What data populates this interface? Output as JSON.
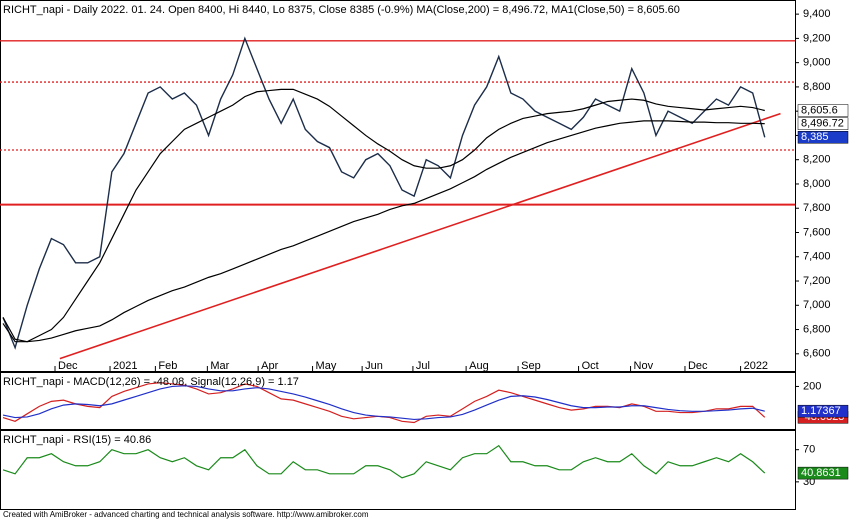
{
  "chart_data": [
    {
      "type": "line",
      "title": "RICHT_napi - Daily 2022. 01. 24. Open 8400, Hi 8440, Lo 8375, Close 8385 (-0.9%) MA(Close,200) = 8,496.72, MA1(Close,50) = 8,605.60",
      "xlim": [
        -0.25,
        65.5
      ],
      "ylim": [
        6450,
        9500
      ],
      "xticks": [
        {
          "value": 4.3,
          "label": "Dec"
        },
        {
          "value": 8.85,
          "label": "2021"
        },
        {
          "value": 12.6,
          "label": "Feb"
        },
        {
          "value": 16.9,
          "label": "Mar"
        },
        {
          "value": 21.1,
          "label": "Apr"
        },
        {
          "value": 25.6,
          "label": "May"
        },
        {
          "value": 29.7,
          "label": "Jun"
        },
        {
          "value": 33.9,
          "label": "Jul"
        },
        {
          "value": 38.3,
          "label": "Aug"
        },
        {
          "value": 42.6,
          "label": "Sep"
        },
        {
          "value": 47.6,
          "label": "Oct"
        },
        {
          "value": 51.9,
          "label": "Nov"
        },
        {
          "value": 56.4,
          "label": "Dec"
        },
        {
          "value": 61.0,
          "label": "2022"
        }
      ],
      "yticks": [
        {
          "value": 6600,
          "label": "6,600"
        },
        {
          "value": 6800,
          "label": "6,800"
        },
        {
          "value": 7000,
          "label": "7,000"
        },
        {
          "value": 7200,
          "label": "7,200"
        },
        {
          "value": 7400,
          "label": "7,400"
        },
        {
          "value": 7600,
          "label": "7,600"
        },
        {
          "value": 7800,
          "label": "7,800"
        },
        {
          "value": 8000,
          "label": "8,000"
        },
        {
          "value": 8200,
          "label": "8,200"
        },
        {
          "value": 8400,
          "label": "8,400"
        },
        {
          "value": 8600,
          "label": "8,600"
        },
        {
          "value": 8800,
          "label": "8,800"
        },
        {
          "value": 9000,
          "label": "9,000"
        },
        {
          "value": 9200,
          "label": "9,200"
        },
        {
          "value": 9400,
          "label": "9,400"
        }
      ],
      "levels": [
        {
          "value": 9180,
          "style": "solid"
        },
        {
          "value": 8840,
          "style": "dotted"
        },
        {
          "value": 8280,
          "style": "dotted"
        },
        {
          "value": 7830,
          "style": "thick"
        }
      ],
      "level_color": "#e02020",
      "trendlines": [
        {
          "x": [
            4.7,
            64.3
          ],
          "y": [
            6560,
            8580
          ]
        }
      ],
      "series": [
        {
          "name": "RICHT_napi",
          "color": "#1c2d4a",
          "end_label": "8,385",
          "label_bg": "#1a3cc8",
          "label_fg": "#ffffff",
          "values": [
            6900,
            6650,
            7000,
            7300,
            7550,
            7500,
            7350,
            7350,
            7400,
            8100,
            8250,
            8500,
            8750,
            8800,
            8700,
            8750,
            8650,
            8400,
            8700,
            8900,
            9200,
            8950,
            8700,
            8500,
            8700,
            8450,
            8350,
            8300,
            8100,
            8050,
            8200,
            8250,
            8150,
            7950,
            7900,
            8200,
            8150,
            8050,
            8400,
            8650,
            8800,
            9050,
            8750,
            8700,
            8600,
            8550,
            8500,
            8450,
            8550,
            8700,
            8650,
            8600,
            8950,
            8750,
            8400,
            8600,
            8550,
            8500,
            8600,
            8700,
            8650,
            8800,
            8750,
            8385
          ]
        },
        {
          "name": "MA1(Close,50)",
          "color": "#000000",
          "end_label": "8,605.6",
          "label_bg": "#ffffff",
          "label_fg": "#000000",
          "values": [
            6850,
            6700,
            6700,
            6750,
            6800,
            6900,
            7050,
            7200,
            7350,
            7550,
            7750,
            7950,
            8100,
            8250,
            8350,
            8450,
            8500,
            8550,
            8600,
            8650,
            8720,
            8760,
            8770,
            8780,
            8780,
            8740,
            8700,
            8640,
            8560,
            8480,
            8400,
            8330,
            8270,
            8200,
            8150,
            8130,
            8130,
            8150,
            8200,
            8280,
            8380,
            8450,
            8500,
            8540,
            8560,
            8580,
            8590,
            8600,
            8620,
            8650,
            8680,
            8690,
            8700,
            8690,
            8660,
            8640,
            8630,
            8620,
            8610,
            8620,
            8630,
            8640,
            8630,
            8605.6
          ]
        },
        {
          "name": "MA(Close,200)",
          "color": "#000000",
          "end_label": "8,496.72",
          "label_bg": "#ffffff",
          "label_fg": "#000000",
          "values": [
            6900,
            6720,
            6700,
            6710,
            6730,
            6760,
            6790,
            6810,
            6830,
            6880,
            6940,
            6990,
            7040,
            7080,
            7120,
            7150,
            7190,
            7230,
            7260,
            7300,
            7340,
            7380,
            7420,
            7460,
            7490,
            7530,
            7570,
            7610,
            7650,
            7690,
            7720,
            7750,
            7790,
            7820,
            7840,
            7880,
            7920,
            7960,
            8010,
            8060,
            8120,
            8170,
            8220,
            8260,
            8300,
            8340,
            8370,
            8400,
            8430,
            8460,
            8480,
            8500,
            8510,
            8520,
            8520,
            8520,
            8515,
            8510,
            8510,
            8505,
            8505,
            8500,
            8500,
            8496.72
          ]
        }
      ]
    },
    {
      "type": "line",
      "title": "RICHT_napi - MACD(12,26) = -48.08, Signal(12,26,9) = 1.17",
      "xlim": [
        -0.25,
        65.5
      ],
      "ylim": [
        -150,
        300
      ],
      "yticks": [
        200
      ],
      "series": [
        {
          "name": "MACD",
          "color": "#d42020",
          "end_label": "-48.0823",
          "label_bg": "#d42020",
          "label_fg": "#ffffff",
          "values": [
            -50,
            -80,
            -20,
            40,
            80,
            90,
            60,
            40,
            30,
            120,
            160,
            190,
            220,
            230,
            220,
            210,
            180,
            140,
            150,
            180,
            220,
            200,
            150,
            100,
            90,
            60,
            30,
            0,
            -40,
            -60,
            -50,
            -40,
            -50,
            -80,
            -90,
            -40,
            -30,
            -40,
            20,
            80,
            120,
            170,
            150,
            120,
            90,
            60,
            30,
            10,
            20,
            40,
            40,
            30,
            60,
            40,
            0,
            0,
            -10,
            -10,
            0,
            20,
            20,
            40,
            40,
            -48.08
          ]
        },
        {
          "name": "Signal",
          "color": "#2030c8",
          "end_label": "1.17367",
          "label_bg": "#2030c8",
          "label_fg": "#ffffff",
          "values": [
            -30,
            -50,
            -45,
            -20,
            20,
            50,
            60,
            55,
            45,
            60,
            90,
            120,
            150,
            180,
            200,
            205,
            200,
            180,
            165,
            165,
            180,
            190,
            180,
            160,
            140,
            115,
            85,
            55,
            20,
            -10,
            -30,
            -40,
            -45,
            -55,
            -65,
            -60,
            -50,
            -45,
            -25,
            10,
            50,
            90,
            120,
            125,
            115,
            95,
            70,
            45,
            30,
            30,
            35,
            35,
            45,
            45,
            30,
            15,
            5,
            0,
            0,
            5,
            10,
            20,
            25,
            1.17
          ]
        }
      ]
    },
    {
      "type": "line",
      "title": "RICHT_napi - RSI(15) = 40.86",
      "xlim": [
        -0.25,
        65.5
      ],
      "ylim": [
        -5,
        92
      ],
      "yticks": [
        30,
        70
      ],
      "series": [
        {
          "name": "RSI",
          "color": "#1a8a1a",
          "end_label": "40.8631",
          "label_bg": "#1a8a1a",
          "label_fg": "#ffffff",
          "values": [
            45,
            40,
            60,
            60,
            65,
            55,
            50,
            50,
            55,
            70,
            65,
            65,
            70,
            60,
            55,
            60,
            50,
            45,
            60,
            60,
            70,
            50,
            40,
            40,
            55,
            45,
            45,
            40,
            40,
            40,
            50,
            50,
            45,
            35,
            40,
            55,
            50,
            45,
            60,
            65,
            65,
            75,
            55,
            55,
            50,
            50,
            45,
            45,
            55,
            60,
            55,
            55,
            65,
            50,
            40,
            55,
            50,
            50,
            55,
            60,
            55,
            65,
            55,
            40.86
          ]
        }
      ]
    }
  ],
  "footer": "Created with AmiBroker - advanced charting and technical analysis software. http://www.amibroker.com"
}
